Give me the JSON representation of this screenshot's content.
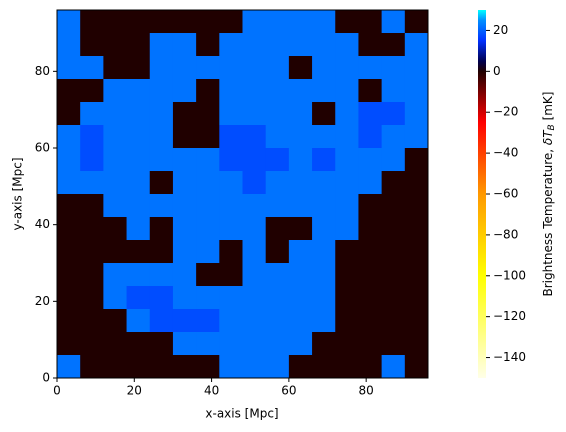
{
  "chart_data": {
    "type": "heatmap",
    "xlabel": "x-axis [Mpc]",
    "ylabel": "y-axis [Mpc]",
    "xlim": [
      0,
      96
    ],
    "ylim": [
      0,
      96
    ],
    "xticks": [
      0,
      20,
      40,
      60,
      80
    ],
    "yticks": [
      0,
      20,
      40,
      60,
      80
    ],
    "z": [
      [
        22,
        0,
        0,
        0,
        0,
        0,
        0,
        0,
        22,
        22,
        22,
        22,
        0,
        0,
        22,
        0
      ],
      [
        22,
        0,
        0,
        0,
        22,
        22,
        0,
        22,
        22,
        22,
        22,
        22,
        22,
        0,
        0,
        22
      ],
      [
        22,
        22,
        0,
        0,
        22,
        22,
        22,
        22,
        22,
        22,
        0,
        22,
        22,
        22,
        22,
        22
      ],
      [
        0,
        0,
        22,
        22,
        22,
        22,
        0,
        22,
        22,
        22,
        22,
        22,
        22,
        0,
        22,
        22
      ],
      [
        0,
        22,
        22,
        22,
        22,
        0,
        0,
        22,
        22,
        22,
        22,
        0,
        22,
        18,
        18,
        22
      ],
      [
        22,
        18,
        22,
        22,
        22,
        0,
        0,
        18,
        18,
        22,
        22,
        22,
        22,
        18,
        22,
        22
      ],
      [
        22,
        18,
        22,
        22,
        22,
        22,
        22,
        18,
        18,
        18,
        22,
        18,
        22,
        22,
        22,
        0
      ],
      [
        22,
        22,
        22,
        22,
        0,
        22,
        22,
        22,
        18,
        22,
        22,
        22,
        22,
        22,
        0,
        0
      ],
      [
        0,
        0,
        22,
        22,
        22,
        22,
        22,
        22,
        22,
        22,
        22,
        22,
        22,
        0,
        0,
        0
      ],
      [
        0,
        0,
        0,
        22,
        0,
        22,
        22,
        22,
        22,
        0,
        0,
        22,
        22,
        0,
        0,
        0
      ],
      [
        0,
        0,
        0,
        0,
        0,
        22,
        22,
        0,
        22,
        0,
        22,
        22,
        0,
        0,
        0,
        0
      ],
      [
        0,
        0,
        22,
        22,
        22,
        22,
        0,
        0,
        22,
        22,
        22,
        22,
        0,
        0,
        0,
        0
      ],
      [
        0,
        0,
        22,
        18,
        18,
        22,
        22,
        22,
        22,
        22,
        22,
        22,
        0,
        0,
        0,
        0
      ],
      [
        0,
        0,
        0,
        22,
        18,
        18,
        18,
        22,
        22,
        22,
        22,
        22,
        0,
        0,
        0,
        0
      ],
      [
        0,
        0,
        0,
        0,
        0,
        22,
        22,
        22,
        22,
        22,
        22,
        0,
        0,
        0,
        0,
        0
      ],
      [
        22,
        0,
        0,
        0,
        0,
        0,
        0,
        22,
        22,
        22,
        0,
        0,
        0,
        0,
        22,
        0
      ]
    ],
    "clim": [
      -150,
      30
    ],
    "colormap": [
      {
        "value": -150,
        "color": "#ffffe8"
      },
      {
        "value": -100,
        "color": "#ffff00"
      },
      {
        "value": -60,
        "color": "#ff9900"
      },
      {
        "value": -25,
        "color": "#ff0000"
      },
      {
        "value": 0,
        "color": "#200000"
      },
      {
        "value": 5,
        "color": "#000050"
      },
      {
        "value": 15,
        "color": "#0030ff"
      },
      {
        "value": 25,
        "color": "#0090ff"
      },
      {
        "value": 30,
        "color": "#00ffff"
      }
    ],
    "cticks": [
      {
        "value": 20,
        "label": "20"
      },
      {
        "value": 0,
        "label": "0"
      },
      {
        "value": -20,
        "label": "−20"
      },
      {
        "value": -40,
        "label": "−40"
      },
      {
        "value": -60,
        "label": "−60"
      },
      {
        "value": -80,
        "label": "−80"
      },
      {
        "value": -100,
        "label": "−100"
      },
      {
        "value": -120,
        "label": "−120"
      },
      {
        "value": -140,
        "label": "−140"
      }
    ],
    "colorbar_label": {
      "text": "Brightness Temperature, ",
      "symbol": "δT",
      "subscript": "B",
      "unit": " [mK]"
    }
  }
}
